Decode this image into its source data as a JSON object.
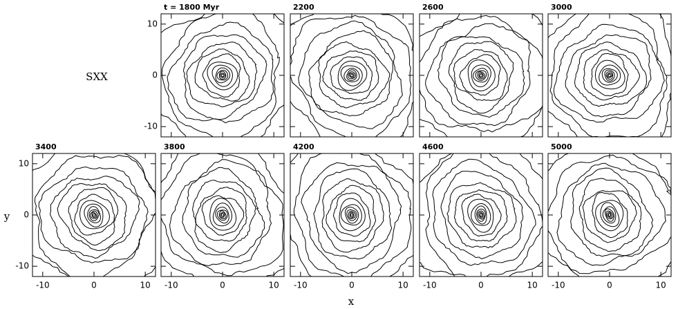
{
  "figure": {
    "label": "SXX",
    "xlabel": "x",
    "ylabel": "y"
  },
  "chart_data": [
    {
      "type": "contour",
      "title": "t = 1800 Myr",
      "xlim": [
        -12,
        12
      ],
      "ylim": [
        -12,
        12
      ],
      "xticks": [
        -10,
        0,
        10
      ],
      "yticks": [
        -10,
        0,
        10
      ]
    },
    {
      "type": "contour",
      "title": "2200",
      "xlim": [
        -12,
        12
      ],
      "ylim": [
        -12,
        12
      ],
      "xticks": [
        -10,
        0,
        10
      ],
      "yticks": [
        -10,
        0,
        10
      ]
    },
    {
      "type": "contour",
      "title": "2600",
      "xlim": [
        -12,
        12
      ],
      "ylim": [
        -12,
        12
      ],
      "xticks": [
        -10,
        0,
        10
      ],
      "yticks": [
        -10,
        0,
        10
      ]
    },
    {
      "type": "contour",
      "title": "3000",
      "xlim": [
        -12,
        12
      ],
      "ylim": [
        -12,
        12
      ],
      "xticks": [
        -10,
        0,
        10
      ],
      "yticks": [
        -10,
        0,
        10
      ]
    },
    {
      "type": "contour",
      "title": "3400",
      "xlim": [
        -12,
        12
      ],
      "ylim": [
        -12,
        12
      ],
      "xticks": [
        -10,
        0,
        10
      ],
      "yticks": [
        -10,
        0,
        10
      ]
    },
    {
      "type": "contour",
      "title": "3800",
      "xlim": [
        -12,
        12
      ],
      "ylim": [
        -12,
        12
      ],
      "xticks": [
        -10,
        0,
        10
      ],
      "yticks": [
        -10,
        0,
        10
      ]
    },
    {
      "type": "contour",
      "title": "4200",
      "xlim": [
        -12,
        12
      ],
      "ylim": [
        -12,
        12
      ],
      "xticks": [
        -10,
        0,
        10
      ],
      "yticks": [
        -10,
        0,
        10
      ]
    },
    {
      "type": "contour",
      "title": "4600",
      "xlim": [
        -12,
        12
      ],
      "ylim": [
        -12,
        12
      ],
      "xticks": [
        -10,
        0,
        10
      ],
      "yticks": [
        -10,
        0,
        10
      ]
    },
    {
      "type": "contour",
      "title": "5000",
      "xlim": [
        -12,
        12
      ],
      "ylim": [
        -12,
        12
      ],
      "xticks": [
        -10,
        0,
        10
      ],
      "yticks": [
        -10,
        0,
        10
      ]
    }
  ]
}
